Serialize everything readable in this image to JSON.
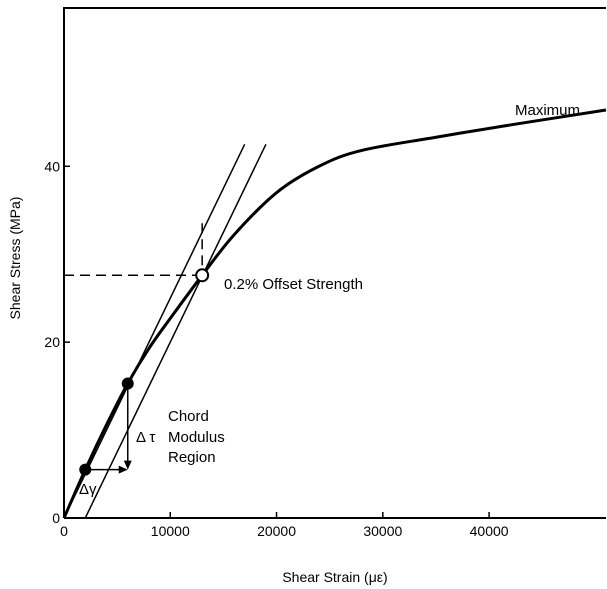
{
  "chart_data": {
    "type": "line",
    "xlabel": "Shear Strain (με)",
    "ylabel": "Shear Stress (MPa)",
    "xlim": [
      0,
      51000
    ],
    "ylim": [
      0,
      58
    ],
    "x_ticks": [
      0,
      10000,
      20000,
      30000,
      40000
    ],
    "y_ticks": [
      0,
      20,
      40
    ],
    "x_tick_labels": [
      "0",
      "10000",
      "20000",
      "30000",
      "40000"
    ],
    "y_tick_labels": [
      "0",
      "20",
      "40"
    ],
    "grid": false,
    "legend": "none",
    "series": [
      {
        "x": [
          0,
          2000,
          4000,
          6000,
          8000,
          10000,
          13000,
          16000,
          20000,
          24000,
          28000,
          35000,
          42000,
          51000
        ],
        "y": [
          0,
          5.5,
          10.6,
          15.3,
          19.3,
          22.7,
          27.6,
          32.2,
          37.0,
          40.0,
          41.8,
          43.3,
          44.7,
          46.4
        ]
      }
    ],
    "chord_line": {
      "x": [
        0,
        17000
      ],
      "y": [
        0,
        42.5
      ]
    },
    "offset_line": {
      "x": [
        2000,
        19000
      ],
      "y": [
        0,
        42.5
      ]
    },
    "chord_points": [
      {
        "x": 2000,
        "y": 5.5
      },
      {
        "x": 6000,
        "y": 15.3
      }
    ],
    "offset_point": {
      "x": 13000,
      "y": 27.6
    },
    "annotations": {
      "maximum": "Maximum",
      "offset_strength": "0.2% Offset Strength",
      "chord_line1": "Chord",
      "chord_line2": "Modulus",
      "chord_line3": "Region",
      "delta_tau": "Δ τ",
      "delta_gamma": "Δγ"
    }
  }
}
